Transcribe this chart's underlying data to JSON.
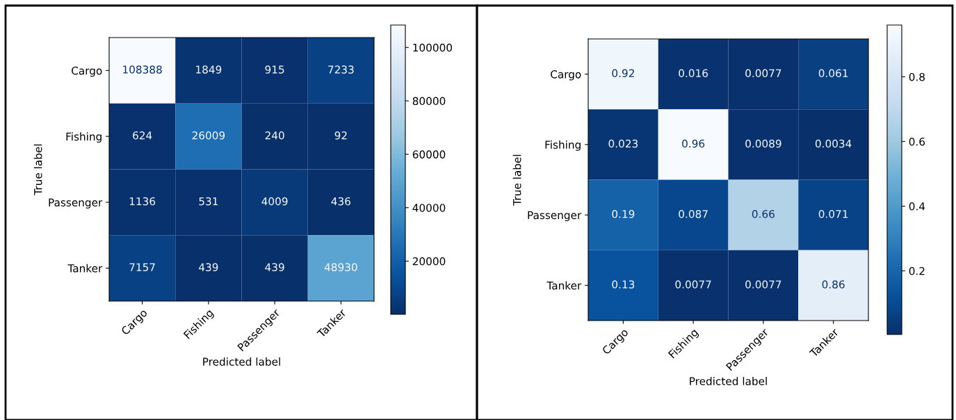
{
  "chart_data": [
    {
      "type": "heatmap",
      "xlabel": "Predicted label",
      "ylabel": "True label",
      "categories": [
        "Cargo",
        "Fishing",
        "Passenger",
        "Tanker"
      ],
      "y_categories": [
        "Cargo",
        "Fishing",
        "Passenger",
        "Tanker"
      ],
      "cells": [
        [
          108388,
          1849,
          915,
          7233
        ],
        [
          624,
          26009,
          240,
          92
        ],
        [
          1136,
          531,
          4009,
          436
        ],
        [
          7157,
          439,
          439,
          48930
        ]
      ],
      "clim": [
        92,
        108388
      ],
      "cticks": [
        20000,
        40000,
        60000,
        80000,
        100000
      ],
      "data_labels": true
    },
    {
      "type": "heatmap",
      "xlabel": "Predicted label",
      "ylabel": "True label",
      "categories": [
        "Cargo",
        "Fishing",
        "Passenger",
        "Tanker"
      ],
      "y_categories": [
        "Cargo",
        "Fishing",
        "Passenger",
        "Tanker"
      ],
      "cells": [
        [
          0.92,
          0.016,
          0.0077,
          0.061
        ],
        [
          0.023,
          0.96,
          0.0089,
          0.0034
        ],
        [
          0.19,
          0.087,
          0.66,
          0.071
        ],
        [
          0.13,
          0.0077,
          0.0077,
          0.86
        ]
      ],
      "clim": [
        0.0034,
        0.96
      ],
      "cticks": [
        0.2,
        0.4,
        0.6,
        0.8
      ],
      "data_labels": true
    }
  ]
}
